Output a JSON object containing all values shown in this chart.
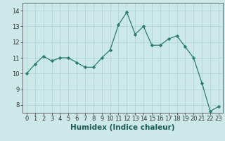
{
  "x": [
    0,
    1,
    2,
    3,
    4,
    5,
    6,
    7,
    8,
    9,
    10,
    11,
    12,
    13,
    14,
    15,
    16,
    17,
    18,
    19,
    20,
    21,
    22,
    23
  ],
  "y": [
    10.0,
    10.6,
    11.1,
    10.8,
    11.0,
    11.0,
    10.7,
    10.4,
    10.4,
    11.0,
    11.5,
    13.1,
    13.9,
    12.5,
    13.0,
    11.8,
    11.8,
    12.2,
    12.4,
    11.7,
    11.0,
    9.4,
    7.6,
    7.9
  ],
  "line_color": "#2a7d6b",
  "marker": "D",
  "marker_size": 2.2,
  "bg_color": "#cce8e8",
  "grid_color": "#aad0d0",
  "xlabel": "Humidex (Indice chaleur)",
  "xlim": [
    -0.5,
    23.5
  ],
  "ylim": [
    7.5,
    14.5
  ],
  "yticks": [
    8,
    9,
    10,
    11,
    12,
    13,
    14
  ],
  "xticks": [
    0,
    1,
    2,
    3,
    4,
    5,
    6,
    7,
    8,
    9,
    10,
    11,
    12,
    13,
    14,
    15,
    16,
    17,
    18,
    19,
    20,
    21,
    22,
    23
  ],
  "tick_labelsize": 6.0,
  "xlabel_fontsize": 7.5
}
